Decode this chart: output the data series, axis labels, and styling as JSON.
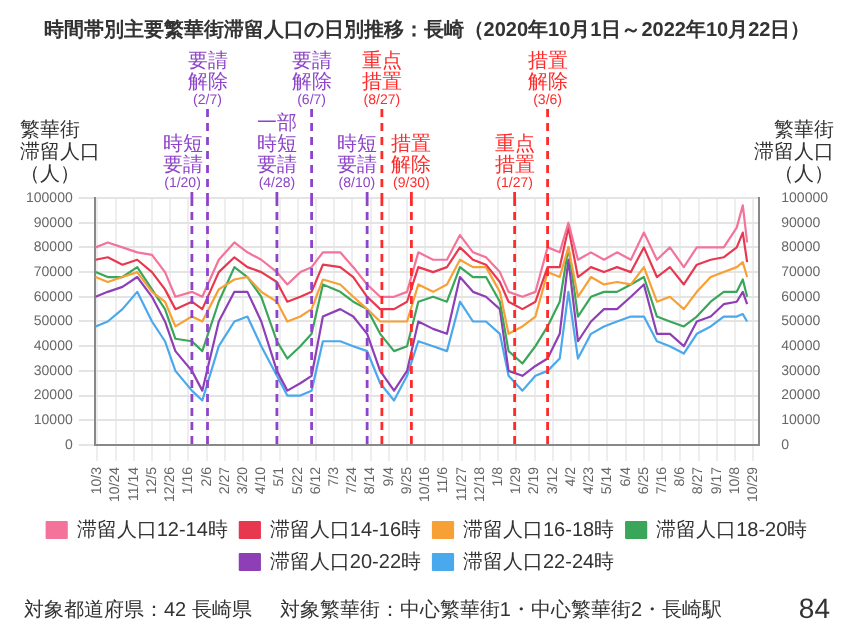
{
  "chart_data": {
    "type": "line",
    "title": "時間帯別主要繁華街滞留人口の日別推移：長崎（2020年10月1日～2022年10月22日）",
    "ylabel": "繁華街滞留人口（人）",
    "y2label": "繁華街滞留人口（人）",
    "x": [
      "2020-10-01",
      "2020-10-15",
      "2020-11-01",
      "2020-11-18",
      "2020-12-05",
      "2020-12-20",
      "2021-01-01",
      "2021-01-20",
      "2021-02-01",
      "2021-02-20",
      "2021-03-10",
      "2021-03-25",
      "2021-04-10",
      "2021-04-28",
      "2021-05-10",
      "2021-05-25",
      "2021-06-07",
      "2021-06-20",
      "2021-07-10",
      "2021-07-25",
      "2021-08-10",
      "2021-08-25",
      "2021-09-10",
      "2021-09-25",
      "2021-10-08",
      "2021-10-25",
      "2021-11-10",
      "2021-11-25",
      "2021-12-10",
      "2021-12-25",
      "2022-01-10",
      "2022-01-20",
      "2022-02-05",
      "2022-02-20",
      "2022-03-06",
      "2022-03-20",
      "2022-03-30",
      "2022-04-10",
      "2022-04-25",
      "2022-05-10",
      "2022-05-25",
      "2022-06-10",
      "2022-06-25",
      "2022-07-10",
      "2022-07-25",
      "2022-08-10",
      "2022-08-25",
      "2022-09-10",
      "2022-09-25",
      "2022-10-10",
      "2022-10-17",
      "2022-10-22"
    ],
    "series": [
      {
        "name": "滞留人口12-14時",
        "color": "#f4739a",
        "values": [
          80000,
          82000,
          80000,
          78000,
          77000,
          70000,
          60000,
          62000,
          60000,
          75000,
          82000,
          78000,
          75000,
          70000,
          65000,
          70000,
          72000,
          78000,
          78000,
          72000,
          65000,
          60000,
          60000,
          62000,
          78000,
          75000,
          75000,
          85000,
          78000,
          76000,
          70000,
          62000,
          60000,
          62000,
          80000,
          78000,
          90000,
          75000,
          78000,
          75000,
          78000,
          75000,
          86000,
          75000,
          80000,
          72000,
          80000,
          80000,
          80000,
          88000,
          97000,
          82000
        ]
      },
      {
        "name": "滞留人口14-16時",
        "color": "#e8384f",
        "values": [
          75000,
          76000,
          73000,
          75000,
          70000,
          63000,
          55000,
          58000,
          55000,
          70000,
          76000,
          72000,
          70000,
          66000,
          58000,
          60000,
          62000,
          73000,
          72000,
          68000,
          60000,
          55000,
          55000,
          58000,
          72000,
          70000,
          72000,
          80000,
          75000,
          73000,
          66000,
          58000,
          55000,
          58000,
          72000,
          72000,
          88000,
          68000,
          72000,
          70000,
          72000,
          70000,
          80000,
          68000,
          72000,
          65000,
          73000,
          75000,
          76000,
          80000,
          86000,
          74000
        ]
      },
      {
        "name": "滞留人口16-18時",
        "color": "#f7a035",
        "values": [
          68000,
          66000,
          68000,
          70000,
          62000,
          58000,
          48000,
          52000,
          50000,
          63000,
          67000,
          68000,
          62000,
          58000,
          50000,
          52000,
          55000,
          67000,
          65000,
          60000,
          55000,
          50000,
          50000,
          50000,
          65000,
          62000,
          65000,
          75000,
          72000,
          72000,
          62000,
          45000,
          48000,
          52000,
          70000,
          68000,
          80000,
          60000,
          68000,
          65000,
          66000,
          65000,
          72000,
          58000,
          60000,
          55000,
          62000,
          68000,
          70000,
          72000,
          74000,
          68000
        ]
      },
      {
        "name": "滞留人口18-20時",
        "color": "#3aa65a",
        "values": [
          70000,
          68000,
          68000,
          72000,
          63000,
          55000,
          43000,
          42000,
          38000,
          58000,
          72000,
          68000,
          60000,
          42000,
          35000,
          40000,
          45000,
          65000,
          62000,
          58000,
          55000,
          45000,
          38000,
          40000,
          58000,
          60000,
          58000,
          72000,
          68000,
          68000,
          58000,
          38000,
          33000,
          40000,
          48000,
          58000,
          80000,
          52000,
          60000,
          62000,
          62000,
          65000,
          68000,
          52000,
          50000,
          48000,
          52000,
          58000,
          62000,
          62000,
          67000,
          60000
        ]
      },
      {
        "name": "滞留人口20-22時",
        "color": "#8e3fb5",
        "values": [
          60000,
          62000,
          64000,
          68000,
          60000,
          50000,
          38000,
          30000,
          22000,
          50000,
          62000,
          62000,
          50000,
          30000,
          22000,
          25000,
          28000,
          52000,
          55000,
          52000,
          45000,
          30000,
          22000,
          30000,
          50000,
          47000,
          45000,
          68000,
          62000,
          60000,
          55000,
          30000,
          28000,
          32000,
          35000,
          45000,
          75000,
          42000,
          50000,
          55000,
          55000,
          60000,
          65000,
          45000,
          45000,
          40000,
          50000,
          52000,
          57000,
          58000,
          62000,
          57000
        ]
      },
      {
        "name": "滞留人口22-24時",
        "color": "#4aa8ec",
        "values": [
          48000,
          50000,
          55000,
          62000,
          50000,
          42000,
          30000,
          22000,
          18000,
          40000,
          50000,
          52000,
          40000,
          28000,
          20000,
          20000,
          22000,
          42000,
          42000,
          40000,
          38000,
          25000,
          18000,
          28000,
          42000,
          40000,
          38000,
          58000,
          50000,
          50000,
          45000,
          28000,
          22000,
          28000,
          30000,
          35000,
          62000,
          35000,
          45000,
          48000,
          50000,
          52000,
          52000,
          42000,
          40000,
          37000,
          45000,
          48000,
          52000,
          52000,
          53000,
          50000
        ]
      }
    ],
    "xlim": [
      "2020-09-30",
      "2022-11-05"
    ],
    "xticks": [
      {
        "value": "2020-10-03",
        "label": "10/3"
      },
      {
        "value": "2020-10-24",
        "label": "10/24"
      },
      {
        "value": "2020-11-14",
        "label": "11/14"
      },
      {
        "value": "2020-12-05",
        "label": "12/5"
      },
      {
        "value": "2020-12-26",
        "label": "12/26"
      },
      {
        "value": "2021-01-16",
        "label": "1/16"
      },
      {
        "value": "2021-02-06",
        "label": "2/6"
      },
      {
        "value": "2021-02-27",
        "label": "2/27"
      },
      {
        "value": "2021-03-20",
        "label": "3/20"
      },
      {
        "value": "2021-04-10",
        "label": "4/10"
      },
      {
        "value": "2021-05-01",
        "label": "5/1"
      },
      {
        "value": "2021-05-22",
        "label": "5/22"
      },
      {
        "value": "2021-06-12",
        "label": "6/12"
      },
      {
        "value": "2021-07-03",
        "label": "7/3"
      },
      {
        "value": "2021-07-24",
        "label": "7/24"
      },
      {
        "value": "2021-08-14",
        "label": "8/14"
      },
      {
        "value": "2021-09-04",
        "label": "9/4"
      },
      {
        "value": "2021-09-25",
        "label": "9/25"
      },
      {
        "value": "2021-10-16",
        "label": "10/16"
      },
      {
        "value": "2021-11-06",
        "label": "11/6"
      },
      {
        "value": "2021-11-27",
        "label": "11/27"
      },
      {
        "value": "2021-12-18",
        "label": "12/18"
      },
      {
        "value": "2022-01-08",
        "label": "1/8"
      },
      {
        "value": "2022-01-29",
        "label": "1/29"
      },
      {
        "value": "2022-02-19",
        "label": "2/19"
      },
      {
        "value": "2022-03-12",
        "label": "3/12"
      },
      {
        "value": "2022-04-02",
        "label": "4/2"
      },
      {
        "value": "2022-04-23",
        "label": "4/23"
      },
      {
        "value": "2022-05-14",
        "label": "5/14"
      },
      {
        "value": "2022-06-04",
        "label": "6/4"
      },
      {
        "value": "2022-06-25",
        "label": "6/25"
      },
      {
        "value": "2022-07-16",
        "label": "7/16"
      },
      {
        "value": "2022-08-06",
        "label": "8/6"
      },
      {
        "value": "2022-08-27",
        "label": "8/27"
      },
      {
        "value": "2022-09-17",
        "label": "9/17"
      },
      {
        "value": "2022-10-08",
        "label": "10/8"
      },
      {
        "value": "2022-10-29",
        "label": "10/29"
      }
    ],
    "ylim": [
      0,
      100000
    ],
    "yticks": [
      0,
      10000,
      20000,
      30000,
      40000,
      50000,
      60000,
      70000,
      80000,
      90000,
      100000
    ],
    "y2lim": [
      0,
      100000
    ],
    "y2ticks": [
      0,
      10000,
      20000,
      30000,
      40000,
      50000,
      60000,
      70000,
      80000,
      90000,
      100000
    ],
    "ref_lines": [
      {
        "axis": "x",
        "value": "2021-01-20",
        "label": "時短要請(1/20)",
        "color": "#8e44c9",
        "line_style": "dashed"
      },
      {
        "axis": "x",
        "value": "2021-02-07",
        "label": "要請解除(2/7)",
        "color": "#8e44c9",
        "line_style": "dashed"
      },
      {
        "axis": "x",
        "value": "2021-04-28",
        "label": "一部時短要請(4/28)",
        "color": "#8e44c9",
        "line_style": "dashed"
      },
      {
        "axis": "x",
        "value": "2021-06-07",
        "label": "要請解除(6/7)",
        "color": "#8e44c9",
        "line_style": "dashed"
      },
      {
        "axis": "x",
        "value": "2021-08-10",
        "label": "時短要請(8/10)",
        "color": "#8e44c9",
        "line_style": "dashed"
      },
      {
        "axis": "x",
        "value": "2021-08-27",
        "label": "重点措置(8/27)",
        "color": "#ff2a2a",
        "line_style": "dashed"
      },
      {
        "axis": "x",
        "value": "2021-09-30",
        "label": "措置解除(9/30)",
        "color": "#ff2a2a",
        "line_style": "dashed"
      },
      {
        "axis": "x",
        "value": "2022-01-27",
        "label": "重点措置(1/27)",
        "color": "#ff2a2a",
        "line_style": "dashed"
      },
      {
        "axis": "x",
        "value": "2022-03-06",
        "label": "措置解除(3/6)",
        "color": "#ff2a2a",
        "line_style": "dashed"
      }
    ],
    "annotations": [
      "対象都道府県：42 長崎県",
      "対象繁華街：中心繁華街1・中心繁華街2・長崎駅",
      "84"
    ],
    "grid": true,
    "legend": "bottom",
    "marker": "none",
    "line_style": "solid"
  }
}
